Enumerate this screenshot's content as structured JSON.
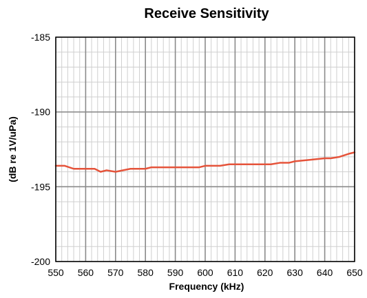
{
  "chart_data": {
    "type": "line",
    "title": "Receive Sensitivity",
    "xlabel": "Frequency (kHz)",
    "ylabel": "(dB re 1V/uPa)",
    "xlim": [
      550,
      650
    ],
    "ylim": [
      -200,
      -185
    ],
    "x_ticks": [
      "550",
      "560",
      "570",
      "580",
      "590",
      "600",
      "610",
      "620",
      "630",
      "640",
      "650"
    ],
    "y_ticks": [
      "-185",
      "-190",
      "-195",
      "-200"
    ],
    "x_tick_values": [
      550,
      560,
      570,
      580,
      590,
      600,
      610,
      620,
      630,
      640,
      650
    ],
    "y_tick_values": [
      -185,
      -190,
      -195,
      -200
    ],
    "x_minor_step": 2,
    "y_minor_step": 1,
    "grid": true,
    "legend": "none",
    "colors": {
      "line": "#e5533a",
      "major_grid": "#8a8a8a",
      "minor_grid": "#cfcfcf",
      "frame": "#000000"
    },
    "series": [
      {
        "x": [
          550,
          553,
          556,
          560,
          563,
          565,
          567,
          570,
          575,
          580,
          582,
          590,
          598,
          600,
          605,
          608,
          615,
          622,
          625,
          628,
          630,
          635,
          640,
          642,
          645,
          648,
          650
        ],
        "y": [
          -193.6,
          -193.6,
          -193.8,
          -193.8,
          -193.8,
          -194.0,
          -193.9,
          -194.0,
          -193.8,
          -193.8,
          -193.7,
          -193.7,
          -193.7,
          -193.6,
          -193.6,
          -193.5,
          -193.5,
          -193.5,
          -193.4,
          -193.4,
          -193.3,
          -193.2,
          -193.1,
          -193.1,
          -193.0,
          -192.8,
          -192.7
        ]
      }
    ]
  }
}
